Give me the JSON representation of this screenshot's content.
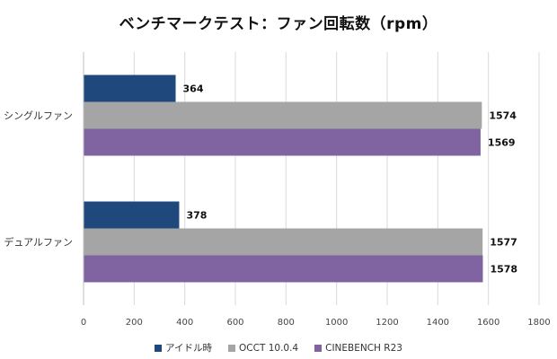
{
  "chart_data": {
    "type": "bar",
    "orientation": "horizontal",
    "title": "ベンチマークテスト：ファン回転数（rpm）",
    "categories": [
      "シングルファン",
      "デュアルファン"
    ],
    "series": [
      {
        "name": "アイドル時",
        "color": "#1f497d",
        "values": [
          364,
          378
        ]
      },
      {
        "name": "OCCT 10.0.4",
        "color": "#a5a5a5",
        "values": [
          1574,
          1577
        ]
      },
      {
        "name": "CINEBENCH R23",
        "color": "#8064a2",
        "values": [
          1569,
          1578
        ]
      }
    ],
    "xlim": [
      0,
      1800
    ],
    "xticks": [
      0,
      200,
      400,
      600,
      800,
      1000,
      1200,
      1400,
      1600,
      1800
    ],
    "xlabel": "",
    "ylabel": "",
    "grid": true,
    "legend_position": "bottom"
  }
}
